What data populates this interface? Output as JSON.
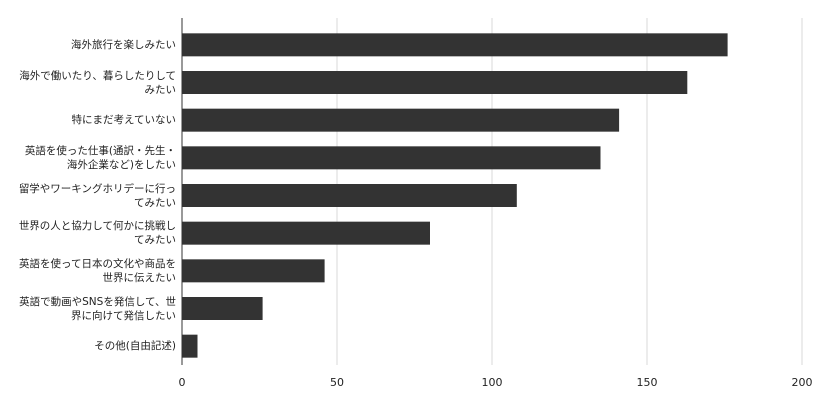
{
  "chart_data": {
    "type": "bar",
    "orientation": "horizontal",
    "categories": [
      "海外旅行を楽しみたい",
      "海外で働いたり、暮らしたりしてみたい",
      "特にまだ考えていない",
      "英語を使った仕事(通訳・先生・海外企業など)をしたい",
      "留学やワーキングホリデーに行ってみたい",
      "世界の人と協力して何かに挑戦してみたい",
      "英語を使って日本の文化や商品を世界に伝えたい",
      "英語で動画やSNSを発信して、世界に向けて発信したい",
      "その他(自由記述)"
    ],
    "values": [
      176,
      163,
      141,
      135,
      108,
      80,
      46,
      26,
      5
    ],
    "color": "#333333",
    "xlim": [
      0,
      200
    ],
    "xticks": [
      0,
      50,
      100,
      150,
      200
    ],
    "grid": true
  }
}
